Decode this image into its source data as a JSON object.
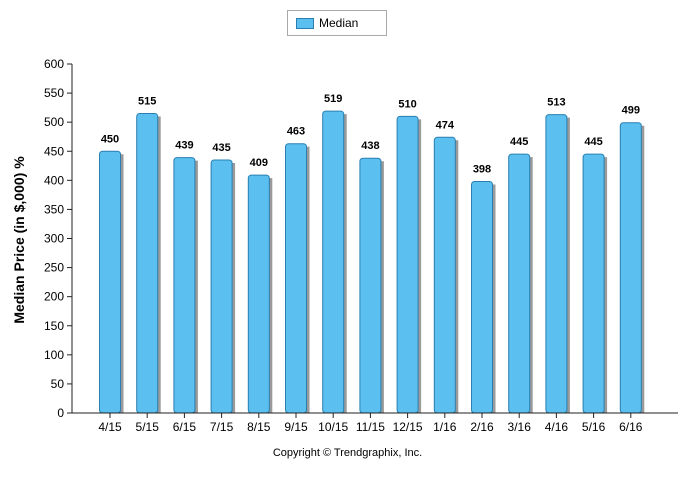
{
  "chart_data": {
    "type": "bar",
    "categories": [
      "4/15",
      "5/15",
      "6/15",
      "7/15",
      "8/15",
      "9/15",
      "10/15",
      "11/15",
      "12/15",
      "1/16",
      "2/16",
      "3/16",
      "4/16",
      "5/16",
      "6/16"
    ],
    "series": [
      {
        "name": "Median",
        "values": [
          450,
          515,
          439,
          435,
          409,
          463,
          519,
          438,
          510,
          474,
          398,
          445,
          513,
          445,
          499
        ]
      }
    ],
    "ylabel": "Median Price (in $,000) %",
    "xlabel": "",
    "ylim": [
      0,
      600
    ],
    "yticks": [
      0,
      50,
      100,
      150,
      200,
      250,
      300,
      350,
      400,
      450,
      500,
      550,
      600
    ],
    "legend_position": "top-center",
    "grid": false,
    "bar_color": "#5bc0f0",
    "bar_edge_color": "#2a7fb0"
  },
  "footer": {
    "copyright": "Copyright © Trendgraphix, Inc."
  }
}
